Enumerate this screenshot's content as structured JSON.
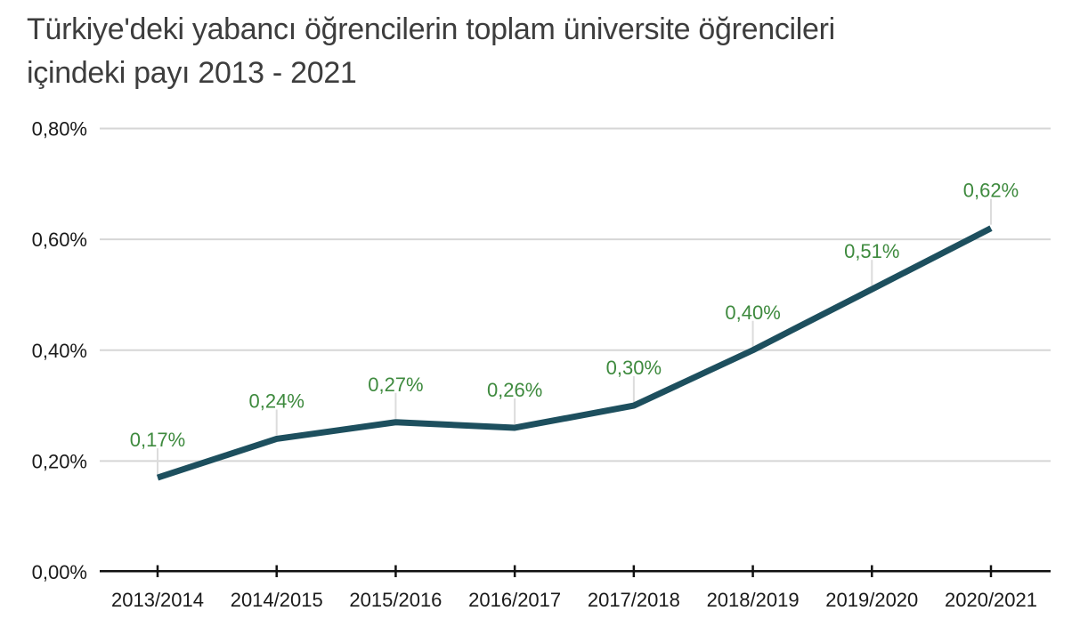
{
  "title": {
    "line1": "Türkiye'deki yabancı öğrencilerin toplam üniversite öğrencileri",
    "line2": "içindeki payı 2013 - 2021"
  },
  "chart_data": {
    "type": "line",
    "title": "Türkiye'deki yabancı öğrencilerin toplam üniversite öğrencileri içindeki payı 2013 - 2021",
    "categories": [
      "2013/2014",
      "2014/2015",
      "2015/2016",
      "2016/2017",
      "2017/2018",
      "2018/2019",
      "2019/2020",
      "2020/2021"
    ],
    "values": [
      0.17,
      0.24,
      0.27,
      0.26,
      0.3,
      0.4,
      0.51,
      0.62
    ],
    "point_labels": [
      "0,17%",
      "0,24%",
      "0,27%",
      "0,26%",
      "0,30%",
      "0,40%",
      "0,51%",
      "0,62%"
    ],
    "y_ticks": {
      "values": [
        0,
        0.2,
        0.4,
        0.6,
        0.8
      ],
      "labels": [
        "0,00%",
        "0,20%",
        "0,40%",
        "0,60%",
        "0,80%"
      ]
    },
    "ylim": [
      0,
      0.8
    ],
    "xlabel": "",
    "ylabel": "",
    "unit": "%",
    "grid": "horizontal",
    "legend": "none",
    "colors": {
      "line": "#1d4f5e",
      "point_label": "#3e8a3e",
      "grid": "#d6d6d6",
      "leader": "#dcdcdc",
      "axis": "#111111",
      "tick_label": "#1a1a1a",
      "title": "#3d3d3d",
      "background": "#ffffff"
    }
  }
}
